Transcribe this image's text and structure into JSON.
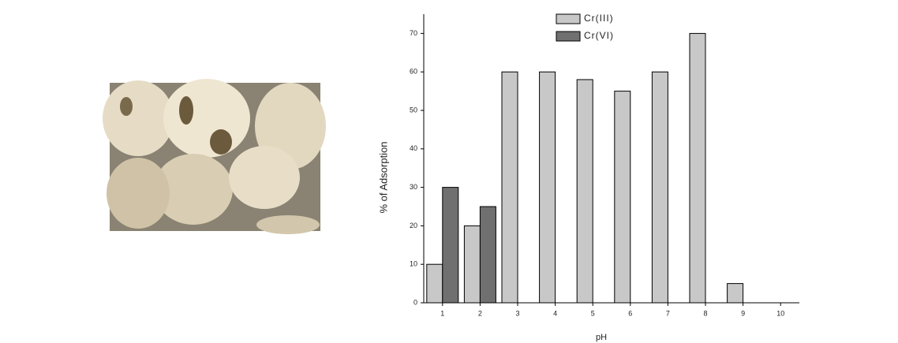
{
  "chart_data": {
    "type": "bar",
    "xlabel": "pH",
    "ylabel": "% of Adsorption",
    "categories": [
      "1",
      "2",
      "3",
      "4",
      "5",
      "6",
      "7",
      "8",
      "9",
      "10"
    ],
    "series": [
      {
        "name": "Cr(III)",
        "color": "#c8c8c8",
        "values": [
          10,
          20,
          60,
          60,
          58,
          55,
          60,
          70,
          5,
          null
        ]
      },
      {
        "name": "Cr(VI)",
        "color": "#707070",
        "values": [
          30,
          25,
          null,
          null,
          null,
          null,
          null,
          null,
          null,
          null
        ]
      }
    ],
    "ylim": [
      0,
      75
    ],
    "yticks": [
      0,
      10,
      20,
      30,
      40,
      50,
      60,
      70
    ],
    "grid": false,
    "legend": "top"
  }
}
